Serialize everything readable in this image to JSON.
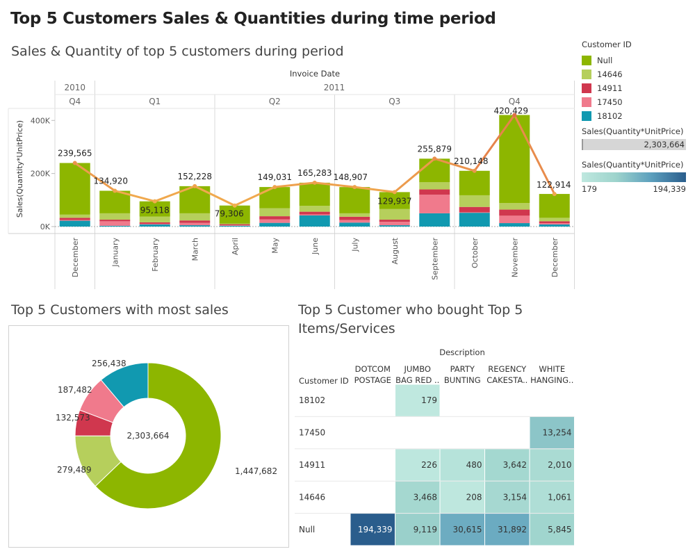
{
  "dashboard_title": "Top 5 Customers Sales & Quantities during time period",
  "sheets": {
    "bar": "Sales & Quantity of top 5 customers during period",
    "donut": "Top 5 Customers with most sales",
    "heatmap_line1": "Top 5 Customer who bought Top 5",
    "heatmap_line2": "Items/Services"
  },
  "legend": {
    "title": "Customer ID",
    "items": [
      {
        "label": "Null",
        "color": "#8db600"
      },
      {
        "label": "14646",
        "color": "#b6cf5c"
      },
      {
        "label": "14911",
        "color": "#d0374e"
      },
      {
        "label": "17450",
        "color": "#f07a8c"
      },
      {
        "label": "18102",
        "color": "#1199b0"
      }
    ],
    "size_title": "Sales(Quantity*UnitPrice)",
    "size_value": "2,303,664",
    "color_title": "Sales(Quantity*UnitPrice)",
    "color_min": "179",
    "color_max": "194,339"
  },
  "chart_data": [
    {
      "type": "bar",
      "stacked": true,
      "header_label": "Invoice Date",
      "years": [
        {
          "label": "2010",
          "quarters": [
            {
              "label": "Q4",
              "months": 1
            }
          ]
        },
        {
          "label": "2011",
          "quarters": [
            {
              "label": "Q1",
              "months": 3
            },
            {
              "label": "Q2",
              "months": 3
            },
            {
              "label": "Q3",
              "months": 3
            },
            {
              "label": "Q4",
              "months": 3
            }
          ]
        }
      ],
      "categories": [
        "December",
        "January",
        "February",
        "March",
        "April",
        "May",
        "June",
        "July",
        "August",
        "September",
        "October",
        "November",
        "December"
      ],
      "ylabel": "Sales(Quantity*UnitPrice)",
      "ylim": [
        0,
        440000
      ],
      "yticks": [
        0,
        200000,
        400000
      ],
      "ytick_labels": [
        "0K",
        "200K",
        "400K"
      ],
      "series": [
        {
          "name": "18102",
          "color": "#1199b0",
          "values": [
            22000,
            3000,
            8000,
            5000,
            3000,
            14000,
            42000,
            15000,
            5000,
            50000,
            52000,
            13000,
            8000
          ]
        },
        {
          "name": "17450",
          "color": "#f07a8c",
          "values": [
            3000,
            17000,
            2000,
            9000,
            2000,
            13000,
            4000,
            10000,
            13000,
            70000,
            2000,
            28000,
            5000
          ]
        },
        {
          "name": "14911",
          "color": "#d0374e",
          "values": [
            8000,
            6000,
            6000,
            9000,
            4000,
            12000,
            10000,
            12000,
            8000,
            20000,
            20000,
            23000,
            7000
          ]
        },
        {
          "name": "14646",
          "color": "#b6cf5c",
          "values": [
            12000,
            24000,
            22000,
            27000,
            2000,
            30000,
            22000,
            13000,
            40000,
            27000,
            44000,
            25000,
            13000
          ]
        },
        {
          "name": "Null",
          "color": "#8db600",
          "values": [
            194565,
            84920,
            57118,
            102228,
            68306,
            80031,
            87283,
            98907,
            63937,
            88879,
            92148,
            331429,
            89914
          ]
        }
      ],
      "totals": [
        239565,
        134920,
        95118,
        152228,
        79306,
        149031,
        165283,
        148907,
        129937,
        255879,
        210148,
        420429,
        122914
      ],
      "total_labels": [
        "239,565",
        "134,920",
        "95,118",
        "152,228",
        "79,306",
        "149,031",
        "165,283",
        "148,907",
        "129,937",
        "255,879",
        "210,148",
        "420,429",
        "122,914"
      ],
      "line_color_low": "#f2b04e",
      "line_color_high": "#e0704a"
    },
    {
      "type": "pie",
      "donut": true,
      "center_label": "2,303,664",
      "slices": [
        {
          "name": "Null",
          "value": 1447682,
          "label": "1,447,682",
          "color": "#8db600"
        },
        {
          "name": "14646",
          "value": 279489,
          "label": "279,489",
          "color": "#b6cf5c"
        },
        {
          "name": "14911",
          "value": 132573,
          "label": "132,573",
          "color": "#d0374e"
        },
        {
          "name": "17450",
          "value": 187482,
          "label": "187,482",
          "color": "#f07a8c"
        },
        {
          "name": "18102",
          "value": 256438,
          "label": "256,438",
          "color": "#1199b0"
        }
      ]
    },
    {
      "type": "heatmap",
      "column_group_label": "Description",
      "row_header": "Customer ID",
      "columns": [
        {
          "line1": "DOTCOM",
          "line2": "POSTAGE"
        },
        {
          "line1": "JUMBO",
          "line2": "BAG RED .."
        },
        {
          "line1": "PARTY",
          "line2": "BUNTING"
        },
        {
          "line1": "REGENCY",
          "line2": "CAKESTA.."
        },
        {
          "line1": "WHITE",
          "line2": "HANGING.."
        }
      ],
      "rows": [
        "18102",
        "17450",
        "14911",
        "14646",
        "Null"
      ],
      "values": [
        [
          null,
          179,
          null,
          null,
          null
        ],
        [
          null,
          null,
          null,
          null,
          13254
        ],
        [
          null,
          226,
          480,
          3642,
          2010
        ],
        [
          null,
          3468,
          208,
          3154,
          1061
        ],
        [
          194339,
          9119,
          30615,
          31892,
          5845
        ]
      ],
      "value_labels": [
        [
          "",
          "179",
          "",
          "",
          ""
        ],
        [
          "",
          "",
          "",
          "",
          "13,254"
        ],
        [
          "",
          "226",
          "480",
          "3,642",
          "2,010"
        ],
        [
          "",
          "3,468",
          "208",
          "3,154",
          "1,061"
        ],
        [
          "194,339",
          "9,119",
          "30,615",
          "31,892",
          "5,845"
        ]
      ],
      "color_min": 179,
      "color_max": 194339
    }
  ]
}
